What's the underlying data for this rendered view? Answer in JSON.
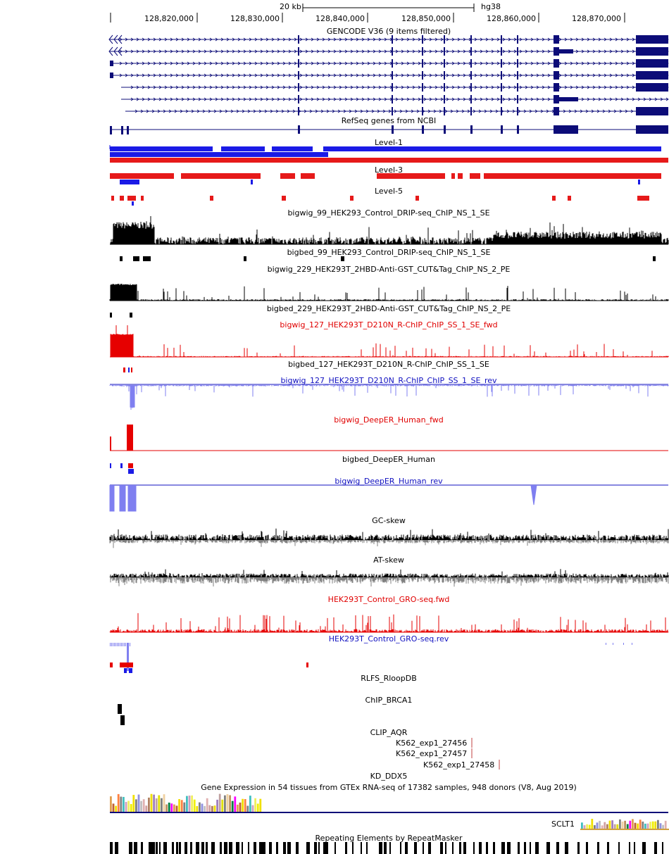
{
  "header": {
    "scale_label": "20 kb",
    "assembly": "hg38",
    "coordinates": [
      "128,820,000",
      "128,830,000",
      "128,840,000",
      "128,850,000",
      "128,860,000",
      "128,870,000"
    ]
  },
  "tracks": [
    {
      "id": "gencode",
      "title": "GENCODE V36 (9 items filtered)",
      "color": "#000000"
    },
    {
      "id": "refseq",
      "title": "RefSeq genes from NCBI",
      "color": "#000000"
    },
    {
      "id": "level1",
      "title": "Level-1",
      "color": "#000000"
    },
    {
      "id": "level3",
      "title": "Level-3",
      "color": "#000000"
    },
    {
      "id": "level5",
      "title": "Level-5",
      "color": "#000000"
    },
    {
      "id": "bigwig99",
      "title": "bigwig_99_HEK293_Control_DRIP-seq_ChIP_NS_1_SE",
      "color": "#000000"
    },
    {
      "id": "bigbed99",
      "title": "bigbed_99_HEK293_Control_DRIP-seq_ChIP_NS_1_SE",
      "color": "#000000"
    },
    {
      "id": "bigwig229",
      "title": "bigwig_229_HEK293T_2HBD-Anti-GST_CUT&Tag_ChIP_NS_2_PE",
      "color": "#000000"
    },
    {
      "id": "bigbed229",
      "title": "bigbed_229_HEK293T_2HBD-Anti-GST_CUT&Tag_ChIP_NS_2_PE",
      "color": "#000000"
    },
    {
      "id": "bigwig127fwd",
      "title": "bigwig_127_HEK293T_D210N_R-ChIP_ChIP_SS_1_SE_fwd",
      "color": "#e00000"
    },
    {
      "id": "bigbed127",
      "title": "bigbed_127_HEK293T_D210N_R-ChIP_ChIP_SS_1_SE",
      "color": "#000000"
    },
    {
      "id": "bigwig127rev",
      "title": "bigwig_127_HEK293T_D210N_R-ChIP_ChIP_SS_1_SE_rev",
      "color": "#1010c0"
    },
    {
      "id": "deeperfwd",
      "title": "bigwig_DeepER_Human_fwd",
      "color": "#e00000"
    },
    {
      "id": "deeperbed",
      "title": "bigbed_DeepER_Human",
      "color": "#000000"
    },
    {
      "id": "deeperrev",
      "title": "bigwig_DeepER_Human_rev",
      "color": "#1010c0"
    },
    {
      "id": "gcskew",
      "title": "GC-skew",
      "color": "#000000"
    },
    {
      "id": "atskew",
      "title": "AT-skew",
      "color": "#000000"
    },
    {
      "id": "grofwd",
      "title": "HEK293T_Control_GRO-seq.fwd",
      "color": "#e00000"
    },
    {
      "id": "grorev",
      "title": "HEK293T_Control_GRO-seq.rev",
      "color": "#1010c0"
    },
    {
      "id": "rlfs",
      "title": "RLFS_RloopDB",
      "color": "#000000"
    },
    {
      "id": "chipbrca1",
      "title": "ChIP_BRCA1",
      "color": "#000000"
    },
    {
      "id": "clipaqr",
      "title": "CLIP_AQR",
      "color": "#000000"
    },
    {
      "id": "kdddx5",
      "title": "KD_DDX5",
      "color": "#000000"
    },
    {
      "id": "gtex",
      "title": "Gene Expression in 54 tissues from GTEx RNA-seq of 17382 samples, 948 donors (V8, Aug 2019)",
      "color": "#000000"
    },
    {
      "id": "rmsk",
      "title": "Repeating Elements by RepeatMasker",
      "color": "#000000"
    }
  ],
  "clip_items": [
    "K562_exp1_27456",
    "K562_exp1_27457",
    "K562_exp1_27458"
  ],
  "gtex_gene": "SCLT1",
  "colors": {
    "gene_navy": "#0c0c78",
    "level_blue": "#1a1ae6",
    "level_red": "#e61a1a",
    "signal_black": "#000000",
    "signal_red": "#e60000",
    "signal_lightblue": "#7f7ff0",
    "skew_gray": "#808080",
    "clip_line": "#c04040"
  }
}
